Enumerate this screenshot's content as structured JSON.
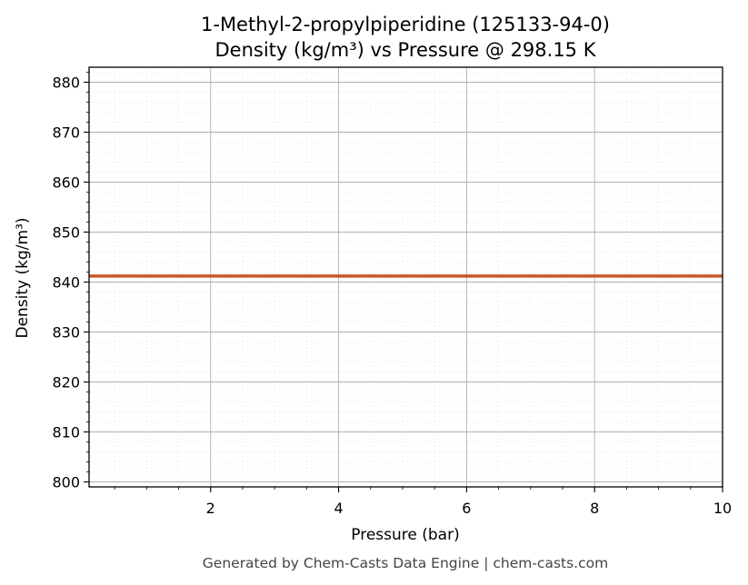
{
  "chart_data": {
    "type": "line",
    "title_line1": "1-Methyl-2-propylpiperidine (125133-94-0)",
    "title_line2": "Density (kg/m³) vs Pressure @ 298.15 K",
    "xlabel": "Pressure (bar)",
    "ylabel": "Density (kg/m³)",
    "xlim": [
      0.1,
      10
    ],
    "ylim": [
      799,
      883
    ],
    "x_ticks": [
      2,
      4,
      6,
      8,
      10
    ],
    "y_ticks": [
      800,
      810,
      820,
      830,
      840,
      850,
      860,
      870,
      880
    ],
    "x_minor_step": 0.5,
    "y_minor_step": 2,
    "grid": true,
    "series": [
      {
        "color": "#cc5529",
        "x": [
          0.1,
          10
        ],
        "y": [
          841.2,
          841.2
        ]
      }
    ]
  },
  "footer": "Generated by Chem-Casts Data Engine | chem-casts.com"
}
